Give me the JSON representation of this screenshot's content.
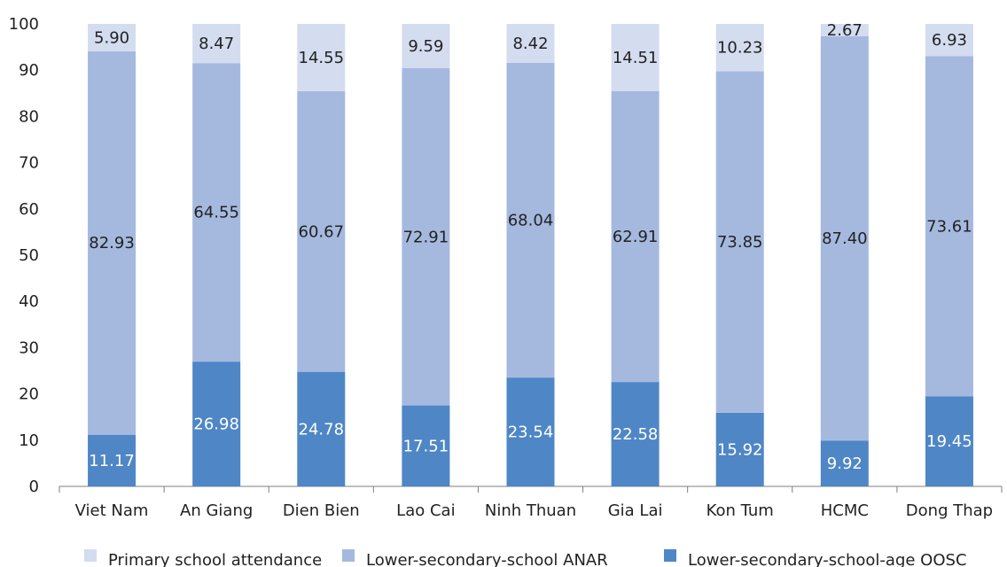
{
  "chart_data": {
    "type": "bar",
    "stacked": true,
    "title": "",
    "xlabel": "",
    "ylabel": "",
    "ylim": [
      0,
      100
    ],
    "yticks": [
      0,
      10,
      20,
      30,
      40,
      50,
      60,
      70,
      80,
      90,
      100
    ],
    "grid": false,
    "legend_position": "bottom",
    "categories": [
      "Viet Nam",
      "An Giang",
      "Dien Bien",
      "Lao Cai",
      "Ninh Thuan",
      "Gia Lai",
      "Kon Tum",
      "HCMC",
      "Dong Thap"
    ],
    "series": [
      {
        "name": "Lower-secondary-school-age OOSC",
        "color": "#4f86c6",
        "label_color": "#ffffff",
        "values": [
          11.17,
          26.98,
          24.78,
          17.51,
          23.54,
          22.58,
          15.92,
          9.92,
          19.45
        ],
        "labels": [
          "11.17",
          "26.98",
          "24.78",
          "17.51",
          "23.54",
          "22.58",
          "15.92",
          "9.92",
          "19.45"
        ]
      },
      {
        "name": "Lower-secondary-school ANAR",
        "color": "#a5b9df",
        "label_color": "#222222",
        "values": [
          82.93,
          64.55,
          60.67,
          72.91,
          68.04,
          62.91,
          73.85,
          87.4,
          73.61
        ],
        "labels": [
          "82.93",
          "64.55",
          "60.67",
          "72.91",
          "68.04",
          "62.91",
          "73.85",
          "87.40",
          "73.61"
        ]
      },
      {
        "name": "Primary school attendance",
        "color": "#d4dcef",
        "label_color": "#222222",
        "values": [
          5.9,
          8.47,
          14.55,
          9.59,
          8.42,
          14.51,
          10.23,
          2.67,
          6.93
        ],
        "labels": [
          "5.90",
          "8.47",
          "14.55",
          "9.59",
          "8.42",
          "14.51",
          "10.23",
          "2.67",
          "6.93"
        ]
      }
    ],
    "legend_order": [
      "Primary school attendance",
      "Lower-secondary-school ANAR",
      "Lower-secondary-school-age OOSC"
    ]
  }
}
